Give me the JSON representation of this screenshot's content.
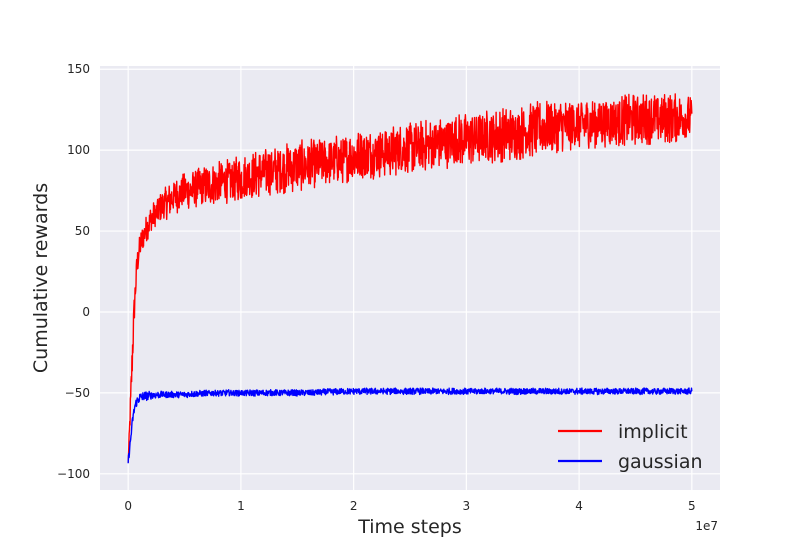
{
  "chart_data": {
    "type": "line",
    "title": "",
    "xlabel": "Time steps",
    "ylabel": "Cumulative rewards",
    "x_offset_label": "1e7",
    "xlim": [
      -0.25,
      5.25
    ],
    "ylim": [
      -110,
      152
    ],
    "x_ticks": [
      0,
      1,
      2,
      3,
      4,
      5
    ],
    "x_tick_labels": [
      "0",
      "1",
      "2",
      "3",
      "4",
      "5"
    ],
    "y_ticks": [
      -100,
      -50,
      0,
      50,
      100,
      150
    ],
    "y_tick_labels": [
      "−100",
      "−50",
      "0",
      "50",
      "100",
      "150"
    ],
    "grid": true,
    "background": "#eaeaf2",
    "legend_position": "lower-right",
    "series": [
      {
        "name": "implicit",
        "color": "#ff0000",
        "x": [
          0,
          0.02,
          0.04,
          0.06,
          0.08,
          0.1,
          0.15,
          0.2,
          0.3,
          0.4,
          0.5,
          0.75,
          1.0,
          1.25,
          1.5,
          1.75,
          2.0,
          2.25,
          2.5,
          2.75,
          3.0,
          3.25,
          3.5,
          3.75,
          4.0,
          4.25,
          4.5,
          4.75,
          5.0
        ],
        "y": [
          -93,
          -60,
          -20,
          10,
          30,
          40,
          50,
          58,
          67,
          72,
          76,
          80,
          84,
          88,
          91,
          94,
          97,
          100,
          102,
          104,
          107,
          109,
          111,
          113,
          115,
          116,
          117,
          119,
          120
        ],
        "band": [
          [
            -93,
            -93
          ],
          [
            -70,
            -50
          ],
          [
            -35,
            -5
          ],
          [
            0,
            20
          ],
          [
            20,
            40
          ],
          [
            32,
            48
          ],
          [
            42,
            58
          ],
          [
            48,
            66
          ],
          [
            55,
            75
          ],
          [
            60,
            82
          ],
          [
            63,
            86
          ],
          [
            66,
            92
          ],
          [
            68,
            97
          ],
          [
            72,
            102
          ],
          [
            74,
            106
          ],
          [
            78,
            108
          ],
          [
            80,
            112
          ],
          [
            83,
            114
          ],
          [
            85,
            118
          ],
          [
            88,
            120
          ],
          [
            90,
            124
          ],
          [
            92,
            126
          ],
          [
            94,
            128
          ],
          [
            98,
            132
          ],
          [
            100,
            132
          ],
          [
            102,
            133
          ],
          [
            103,
            135
          ],
          [
            104,
            136
          ],
          [
            105,
            134
          ]
        ]
      },
      {
        "name": "gaussian",
        "color": "#0000ff",
        "x": [
          0,
          0.02,
          0.04,
          0.06,
          0.08,
          0.1,
          0.15,
          0.2,
          0.3,
          0.5,
          0.75,
          1.0,
          1.5,
          2.0,
          2.5,
          3.0,
          3.5,
          4.0,
          4.5,
          5.0
        ],
        "y": [
          -93,
          -80,
          -66,
          -58,
          -55,
          -53,
          -52,
          -51.5,
          -51,
          -51,
          -50.5,
          -50,
          -50,
          -49.5,
          -49.5,
          -49,
          -49,
          -49,
          -49,
          -49
        ],
        "band": [
          [
            -95,
            -90
          ],
          [
            -83,
            -77
          ],
          [
            -69,
            -63
          ],
          [
            -61,
            -55
          ],
          [
            -58,
            -52
          ],
          [
            -56,
            -50
          ],
          [
            -55,
            -49
          ],
          [
            -54,
            -49
          ],
          [
            -53,
            -49
          ],
          [
            -53,
            -49
          ],
          [
            -52,
            -48
          ],
          [
            -52,
            -48
          ],
          [
            -52,
            -48
          ],
          [
            -51,
            -47
          ],
          [
            -51,
            -47
          ],
          [
            -51,
            -47
          ],
          [
            -51,
            -47
          ],
          [
            -51,
            -47
          ],
          [
            -51,
            -47
          ],
          [
            -51,
            -47
          ]
        ]
      }
    ]
  }
}
